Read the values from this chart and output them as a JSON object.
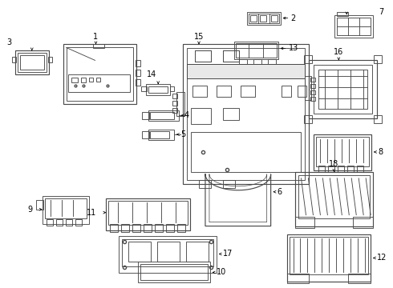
{
  "bg_color": "#ffffff",
  "line_color": "#4a4a4a",
  "lw": 0.65,
  "fig_width": 4.9,
  "fig_height": 3.6,
  "dpi": 100,
  "label_fontsize": 7.0,
  "arrow_lw": 0.55,
  "arrow_ms": 5
}
